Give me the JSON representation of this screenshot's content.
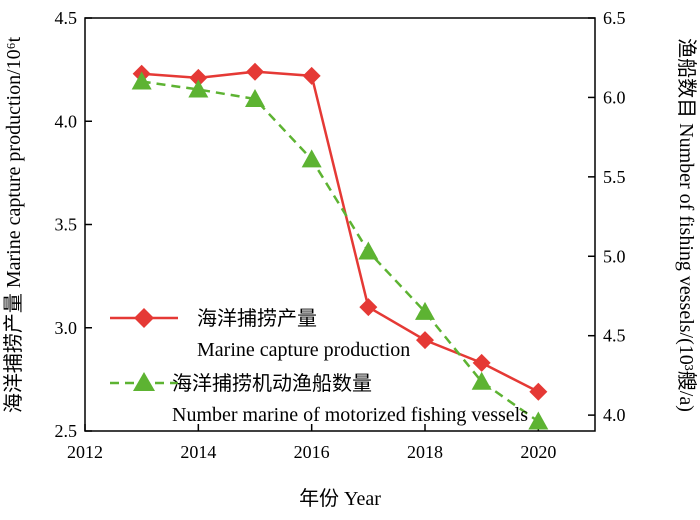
{
  "chart_data": {
    "type": "line",
    "xlabel": "年份 Year",
    "ylabel_left": "海洋捕捞产量 Marine capture production/10⁶t",
    "ylabel_right": "渔船数目 Number of fishing vessels/(10³艘/a)",
    "xlim": [
      2012,
      2021
    ],
    "ylim_left": [
      2.5,
      4.5
    ],
    "ylim_right": [
      3.9,
      6.5
    ],
    "x_ticks": [
      2012,
      2014,
      2016,
      2018,
      2020
    ],
    "y_left_ticks": [
      2.5,
      3.0,
      3.5,
      4.0,
      4.5
    ],
    "y_right_ticks": [
      4.0,
      4.5,
      5.0,
      5.5,
      6.0,
      6.5
    ],
    "grid": false,
    "legend_position": "lower-left",
    "series": [
      {
        "name": "海洋捕捞产量",
        "name_en": "Marine capture production",
        "axis": "left",
        "color": "#e53935",
        "marker": "diamond",
        "line_style": "solid",
        "x": [
          2013,
          2014,
          2015,
          2016,
          2017,
          2018,
          2019,
          2020
        ],
        "values": [
          4.23,
          4.21,
          4.24,
          4.22,
          3.1,
          2.94,
          2.83,
          2.69
        ]
      },
      {
        "name": "海洋捕捞机动渔船数量",
        "name_en": "Number marine of motorized fishing vessels",
        "axis": "right",
        "color": "#5db332",
        "marker": "triangle",
        "line_style": "dashed",
        "x": [
          2013,
          2014,
          2015,
          2016,
          2017,
          2018,
          2019,
          2020
        ],
        "values": [
          6.1,
          6.05,
          5.99,
          5.61,
          5.03,
          4.65,
          4.21,
          3.96
        ]
      }
    ]
  }
}
